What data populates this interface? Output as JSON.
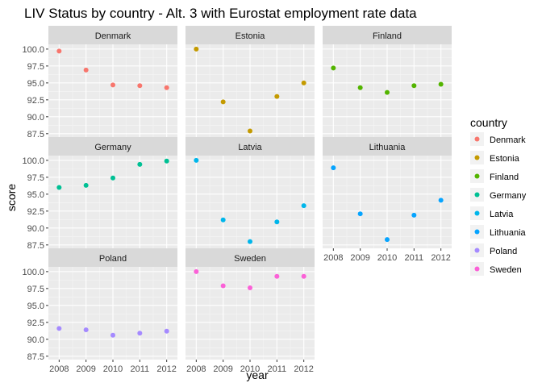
{
  "chart_data": {
    "type": "scatter",
    "title": "LIV Status by country - Alt. 3 with Eurostat employment rate data",
    "xlabel": "year",
    "ylabel": "score",
    "x_ticks": [
      "2008",
      "2009",
      "2010",
      "2011",
      "2012"
    ],
    "y_ticks": [
      "87.5",
      "90.0",
      "92.5",
      "95.0",
      "97.5",
      "100.0"
    ],
    "xlim": [
      2007.6,
      2012.4
    ],
    "ylim": [
      87.0,
      100.7
    ],
    "facet_columns": 3,
    "grid": true,
    "legend_position": "right",
    "legend_title": "country",
    "panels": [
      {
        "name": "Denmark",
        "color": "#F8766D",
        "x": [
          2008,
          2009,
          2010,
          2011,
          2012
        ],
        "y": [
          99.7,
          96.9,
          94.7,
          94.6,
          94.3
        ]
      },
      {
        "name": "Estonia",
        "color": "#C49A00",
        "x": [
          2008,
          2009,
          2010,
          2011,
          2012
        ],
        "y": [
          100.0,
          92.2,
          87.9,
          93.0,
          95.0
        ]
      },
      {
        "name": "Finland",
        "color": "#53B400",
        "x": [
          2008,
          2009,
          2010,
          2011,
          2012
        ],
        "y": [
          97.2,
          94.3,
          93.6,
          94.6,
          94.8
        ]
      },
      {
        "name": "Germany",
        "color": "#00C094",
        "x": [
          2008,
          2009,
          2010,
          2011,
          2012
        ],
        "y": [
          96.0,
          96.3,
          97.4,
          99.4,
          99.9
        ]
      },
      {
        "name": "Latvia",
        "color": "#00B6EB",
        "x": [
          2008,
          2009,
          2010,
          2011,
          2012
        ],
        "y": [
          100.0,
          91.2,
          88.0,
          90.9,
          93.3
        ]
      },
      {
        "name": "Lithuania",
        "color": "#06A4FF",
        "x": [
          2008,
          2009,
          2010,
          2011,
          2012
        ],
        "y": [
          98.9,
          92.1,
          88.3,
          91.9,
          94.1
        ]
      },
      {
        "name": "Poland",
        "color": "#A58AFF",
        "x": [
          2008,
          2009,
          2010,
          2011,
          2012
        ],
        "y": [
          91.6,
          91.4,
          90.6,
          90.9,
          91.2
        ]
      },
      {
        "name": "Sweden",
        "color": "#FB61D7",
        "x": [
          2008,
          2009,
          2010,
          2011,
          2012
        ],
        "y": [
          100.0,
          97.9,
          97.6,
          99.3,
          99.3
        ]
      }
    ]
  }
}
